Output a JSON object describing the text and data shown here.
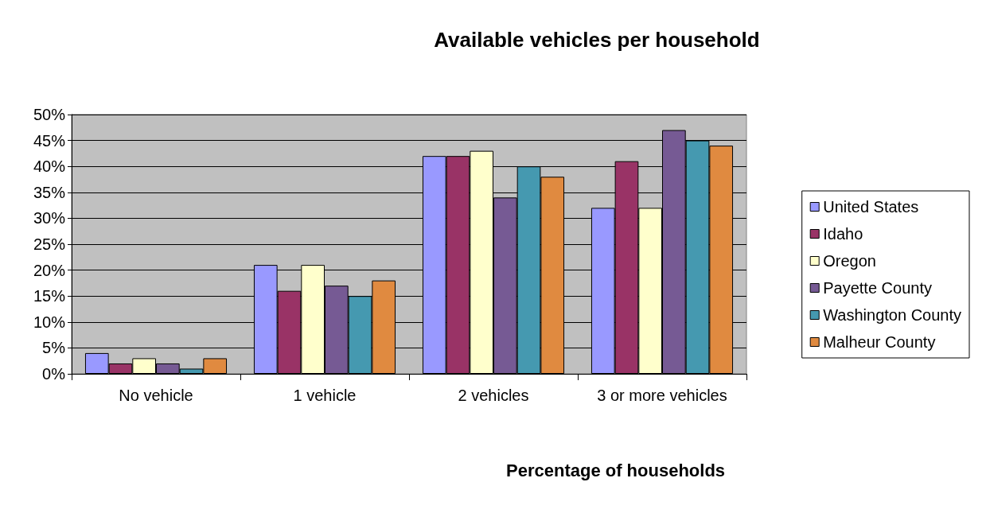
{
  "chart_data": {
    "type": "bar",
    "title": "Available vehicles per household",
    "xlabel": "Percentage of households",
    "categories": [
      "No vehicle",
      "1 vehicle",
      "2 vehicles",
      "3 or more vehicles"
    ],
    "series": [
      {
        "name": "United States",
        "color": "#9999ff",
        "values": [
          4,
          21,
          42,
          32
        ]
      },
      {
        "name": "Idaho",
        "color": "#993366",
        "values": [
          2,
          16,
          42,
          41
        ]
      },
      {
        "name": "Oregon",
        "color": "#ffffcc",
        "values": [
          3,
          21,
          43,
          32
        ]
      },
      {
        "name": "Payette County",
        "color": "#765a94",
        "values": [
          2,
          17,
          34,
          47
        ]
      },
      {
        "name": "Washington County",
        "color": "#4599b0",
        "values": [
          1,
          15,
          40,
          45
        ]
      },
      {
        "name": "Malheur County",
        "color": "#e08a40",
        "values": [
          3,
          18,
          38,
          44
        ]
      }
    ],
    "ylim": [
      0,
      50
    ],
    "yticks": [
      {
        "value": 0,
        "label": "0%"
      },
      {
        "value": 5,
        "label": "5%"
      },
      {
        "value": 10,
        "label": "10%"
      },
      {
        "value": 15,
        "label": "15%"
      },
      {
        "value": 20,
        "label": "20%"
      },
      {
        "value": 25,
        "label": "25%"
      },
      {
        "value": 30,
        "label": "30%"
      },
      {
        "value": 35,
        "label": "35%"
      },
      {
        "value": 40,
        "label": "40%"
      },
      {
        "value": 45,
        "label": "45%"
      },
      {
        "value": 50,
        "label": "50%"
      }
    ],
    "grid": "y",
    "legend": "right"
  }
}
